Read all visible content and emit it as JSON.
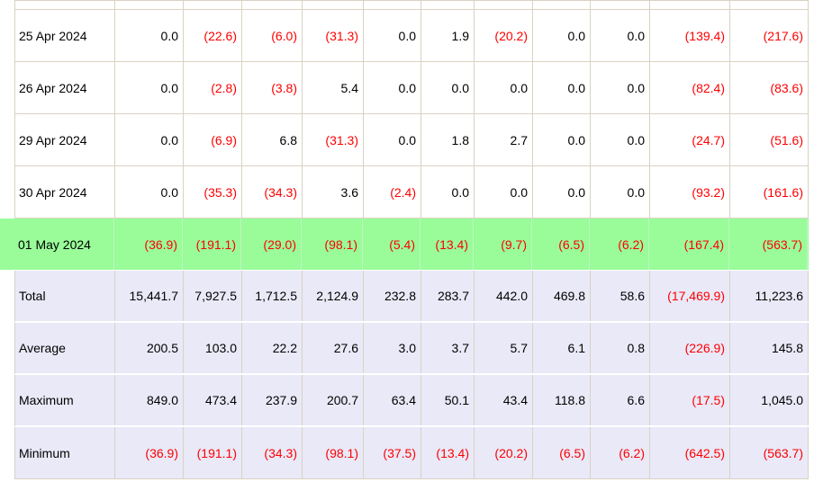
{
  "table": {
    "rows": [
      {
        "label": "25 Apr 2024",
        "type": "date",
        "values": [
          "0.0",
          "(22.6)",
          "(6.0)",
          "(31.3)",
          "0.0",
          "1.9",
          "(20.2)",
          "0.0",
          "0.0",
          "(139.4)",
          "(217.6)"
        ]
      },
      {
        "label": "26 Apr 2024",
        "type": "date",
        "values": [
          "0.0",
          "(2.8)",
          "(3.8)",
          "5.4",
          "0.0",
          "0.0",
          "0.0",
          "0.0",
          "0.0",
          "(82.4)",
          "(83.6)"
        ]
      },
      {
        "label": "29 Apr 2024",
        "type": "date",
        "values": [
          "0.0",
          "(6.9)",
          "6.8",
          "(31.3)",
          "0.0",
          "1.8",
          "2.7",
          "0.0",
          "0.0",
          "(24.7)",
          "(51.6)"
        ]
      },
      {
        "label": "30 Apr 2024",
        "type": "date",
        "values": [
          "0.0",
          "(35.3)",
          "(34.3)",
          "3.6",
          "(2.4)",
          "0.0",
          "0.0",
          "0.0",
          "0.0",
          "(93.2)",
          "(161.6)"
        ]
      },
      {
        "label": "01 May 2024",
        "type": "highlight",
        "values": [
          "(36.9)",
          "(191.1)",
          "(29.0)",
          "(98.1)",
          "(5.4)",
          "(13.4)",
          "(9.7)",
          "(6.5)",
          "(6.2)",
          "(167.4)",
          "(563.7)"
        ]
      },
      {
        "label": "Total",
        "type": "summary",
        "values": [
          "15,441.7",
          "7,927.5",
          "1,712.5",
          "2,124.9",
          "232.8",
          "283.7",
          "442.0",
          "469.8",
          "58.6",
          "(17,469.9)",
          "11,223.6"
        ]
      },
      {
        "label": "Average",
        "type": "summary",
        "values": [
          "200.5",
          "103.0",
          "22.2",
          "27.6",
          "3.0",
          "3.7",
          "5.7",
          "6.1",
          "0.8",
          "(226.9)",
          "145.8"
        ]
      },
      {
        "label": "Maximum",
        "type": "summary",
        "values": [
          "849.0",
          "473.4",
          "237.9",
          "200.7",
          "63.4",
          "50.1",
          "43.4",
          "118.8",
          "6.6",
          "(17.5)",
          "1,045.0"
        ]
      },
      {
        "label": "Minimum",
        "type": "summary",
        "values": [
          "(36.9)",
          "(191.1)",
          "(34.3)",
          "(98.1)",
          "(37.5)",
          "(13.4)",
          "(20.2)",
          "(6.5)",
          "(6.2)",
          "(642.5)",
          "(563.7)"
        ]
      }
    ],
    "colors": {
      "highlight_row_bg": "#99fc99",
      "summary_row_bg": "#e9e9f8",
      "negative_text": "#fe0000",
      "grid_border": "#d9d2c3"
    }
  }
}
